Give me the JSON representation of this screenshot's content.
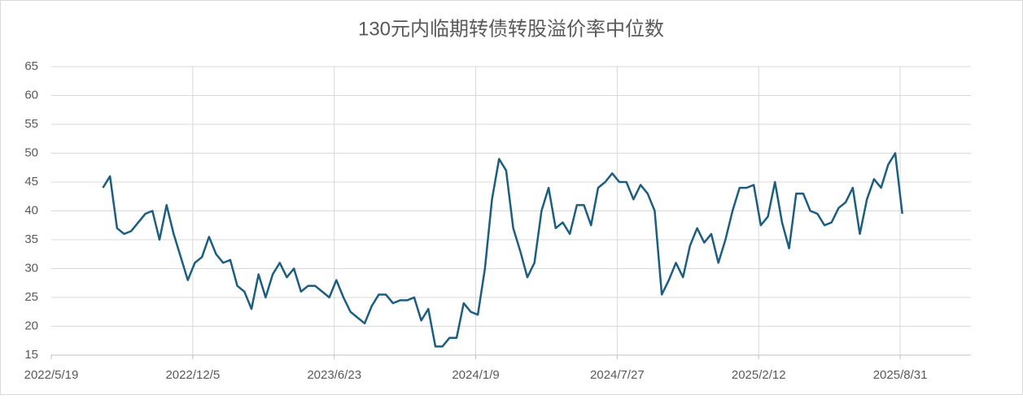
{
  "chart_data": {
    "type": "line",
    "title": "130元内临期转债转股溢价率中位数",
    "color": "#1b5e80",
    "grid": true,
    "xlim": [
      "2022/5/19",
      "2025/12/9"
    ],
    "xticks": [
      "2022/5/19",
      "2022/12/5",
      "2023/6/23",
      "2024/1/9",
      "2024/7/27",
      "2025/2/12",
      "2025/8/31"
    ],
    "ylim": [
      15,
      65
    ],
    "yticks": [
      15,
      20,
      25,
      30,
      35,
      40,
      45,
      50,
      55,
      60,
      65
    ],
    "x": [
      "2022/7/31",
      "2022/8/10",
      "2022/8/20",
      "2022/8/30",
      "2022/9/9",
      "2022/9/19",
      "2022/9/29",
      "2022/10/9",
      "2022/10/19",
      "2022/10/29",
      "2022/11/8",
      "2022/11/18",
      "2022/11/28",
      "2022/12/8",
      "2022/12/18",
      "2022/12/28",
      "2023/1/7",
      "2023/1/17",
      "2023/1/27",
      "2023/2/6",
      "2023/2/16",
      "2023/2/26",
      "2023/3/8",
      "2023/3/18",
      "2023/3/28",
      "2023/4/7",
      "2023/4/17",
      "2023/4/27",
      "2023/5/7",
      "2023/5/17",
      "2023/5/27",
      "2023/6/6",
      "2023/6/16",
      "2023/6/26",
      "2023/7/6",
      "2023/7/16",
      "2023/7/26",
      "2023/8/5",
      "2023/8/15",
      "2023/8/25",
      "2023/9/4",
      "2023/9/14",
      "2023/9/24",
      "2023/10/4",
      "2023/10/14",
      "2023/10/24",
      "2023/11/3",
      "2023/11/13",
      "2023/11/23",
      "2023/12/3",
      "2023/12/13",
      "2023/12/23",
      "2024/1/2",
      "2024/1/12",
      "2024/1/22",
      "2024/2/1",
      "2024/2/11",
      "2024/2/21",
      "2024/3/2",
      "2024/3/12",
      "2024/3/22",
      "2024/4/1",
      "2024/4/11",
      "2024/4/21",
      "2024/5/1",
      "2024/5/11",
      "2024/5/21",
      "2024/5/31",
      "2024/6/10",
      "2024/6/20",
      "2024/6/30",
      "2024/7/10",
      "2024/7/20",
      "2024/7/30",
      "2024/8/9",
      "2024/8/19",
      "2024/8/29",
      "2024/9/8",
      "2024/9/18",
      "2024/9/28",
      "2024/10/8",
      "2024/10/18",
      "2024/10/28",
      "2024/11/7",
      "2024/11/17",
      "2024/11/27",
      "2024/12/7",
      "2024/12/17",
      "2024/12/27",
      "2025/1/6",
      "2025/1/16",
      "2025/1/26",
      "2025/2/5",
      "2025/2/15",
      "2025/2/25",
      "2025/3/7",
      "2025/3/17",
      "2025/3/27",
      "2025/4/6",
      "2025/4/16",
      "2025/4/26",
      "2025/5/6",
      "2025/5/16",
      "2025/5/26",
      "2025/6/5",
      "2025/6/15",
      "2025/6/25",
      "2025/7/5",
      "2025/7/15",
      "2025/7/25",
      "2025/8/4",
      "2025/8/14",
      "2025/8/24",
      "2025/9/3"
    ],
    "values": [
      44,
      46,
      37,
      36,
      36.5,
      38,
      39.5,
      40,
      35,
      41,
      36,
      32,
      28,
      31,
      32,
      35.5,
      32.5,
      31,
      31.5,
      27,
      26,
      23,
      29,
      25,
      29,
      31,
      28.5,
      30,
      26,
      27,
      27,
      26,
      25,
      28,
      25,
      22.5,
      21.5,
      20.5,
      23.5,
      25.5,
      25.5,
      24,
      24.5,
      24.5,
      25,
      21,
      23,
      16.5,
      16.5,
      18,
      18,
      24,
      22.5,
      22,
      30,
      42,
      49,
      47,
      37,
      33,
      28.5,
      31,
      40,
      44,
      37,
      38,
      36,
      41,
      41,
      37.5,
      44,
      45,
      46.5,
      45,
      45,
      42,
      44.5,
      43,
      40,
      25.5,
      28,
      31,
      28.5,
      34,
      37,
      34.5,
      36,
      31,
      35,
      40,
      44,
      44,
      44.5,
      37.5,
      39,
      45,
      38,
      33.5,
      43,
      43,
      40,
      39.5,
      37.5,
      38,
      40.5,
      41.5,
      44,
      36,
      42,
      45.5,
      44,
      48,
      50,
      39.5
    ]
  }
}
